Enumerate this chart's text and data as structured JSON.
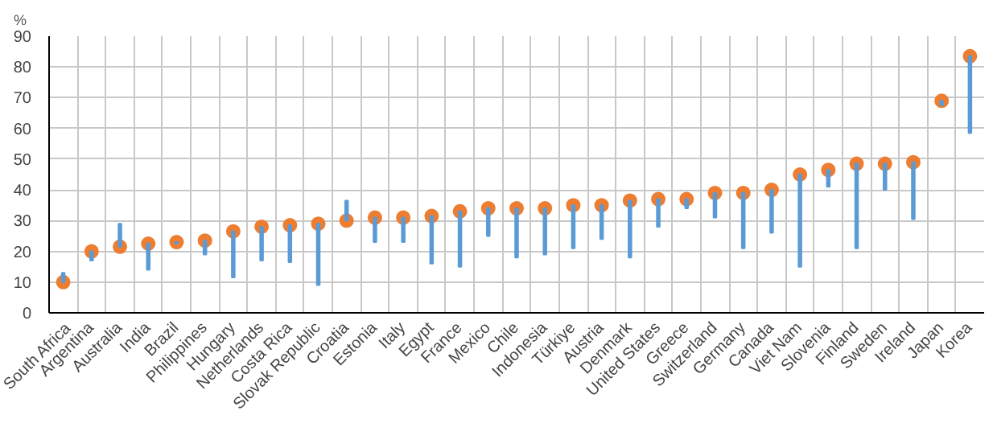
{
  "chart_data": {
    "type": "bar",
    "ylabel": "%",
    "categories": [
      "South Africa",
      "Argentina",
      "Australia",
      "India",
      "Brazil",
      "Philippines",
      "Hungary",
      "Netherlands",
      "Costa Rica",
      "Slovak Republic",
      "Croatia",
      "Estonia",
      "Italy",
      "Egypt",
      "France",
      "Mexico",
      "Chile",
      "Indonesia",
      "Türkiye",
      "Austria",
      "Denmark",
      "United States",
      "Greece",
      "Switzerland",
      "Germany",
      "Canada",
      "Viet Nam",
      "Slovenia",
      "Finland",
      "Sweden",
      "Ireland",
      "Japan",
      "Korea"
    ],
    "series": [
      {
        "color": "#5b9bd5",
        "base": [
          13,
          17,
          29,
          14,
          22.5,
          19,
          11.5,
          17,
          16.5,
          9,
          36.5,
          23,
          23,
          16,
          15,
          25,
          18,
          19,
          21,
          24,
          18,
          28,
          34,
          31,
          21,
          26,
          15,
          41,
          21,
          40,
          30.5,
          67.5,
          58.5
        ],
        "values": [
          -3,
          3,
          -7.5,
          8.5,
          0.5,
          4.5,
          15,
          11,
          12,
          20,
          -6.5,
          8,
          8,
          15.5,
          18,
          9,
          16,
          15,
          14,
          11,
          18.5,
          9,
          3,
          8,
          18,
          14,
          30,
          5.5,
          27.5,
          8.5,
          18.5,
          1.5,
          25
        ]
      },
      {
        "type": "scatter",
        "color": "#ed7d31",
        "marker": "circle",
        "x": [
          "South Africa",
          "Argentina",
          "Australia",
          "India",
          "Brazil",
          "Philippines",
          "Hungary",
          "Netherlands",
          "Costa Rica",
          "Slovak Republic",
          "Croatia",
          "Estonia",
          "Italy",
          "Egypt",
          "France",
          "Mexico",
          "Chile",
          "Indonesia",
          "Türkiye",
          "Austria",
          "Denmark",
          "United States",
          "Greece",
          "Switzerland",
          "Germany",
          "Canada",
          "Viet Nam",
          "Slovenia",
          "Finland",
          "Sweden",
          "Ireland",
          "Japan",
          "Korea"
        ],
        "values": [
          10,
          20,
          21.5,
          22.5,
          23,
          23.5,
          26.5,
          28,
          28.5,
          29,
          30,
          31,
          31,
          31.5,
          33,
          34,
          34,
          34,
          35,
          35,
          36.5,
          37,
          37,
          39,
          39,
          40,
          45,
          46.5,
          48.5,
          48.5,
          49,
          69,
          83.5
        ]
      }
    ],
    "ylim": [
      0,
      90
    ],
    "yticks": [
      0,
      10,
      20,
      30,
      40,
      50,
      60,
      70,
      80,
      90
    ],
    "grid": true
  }
}
